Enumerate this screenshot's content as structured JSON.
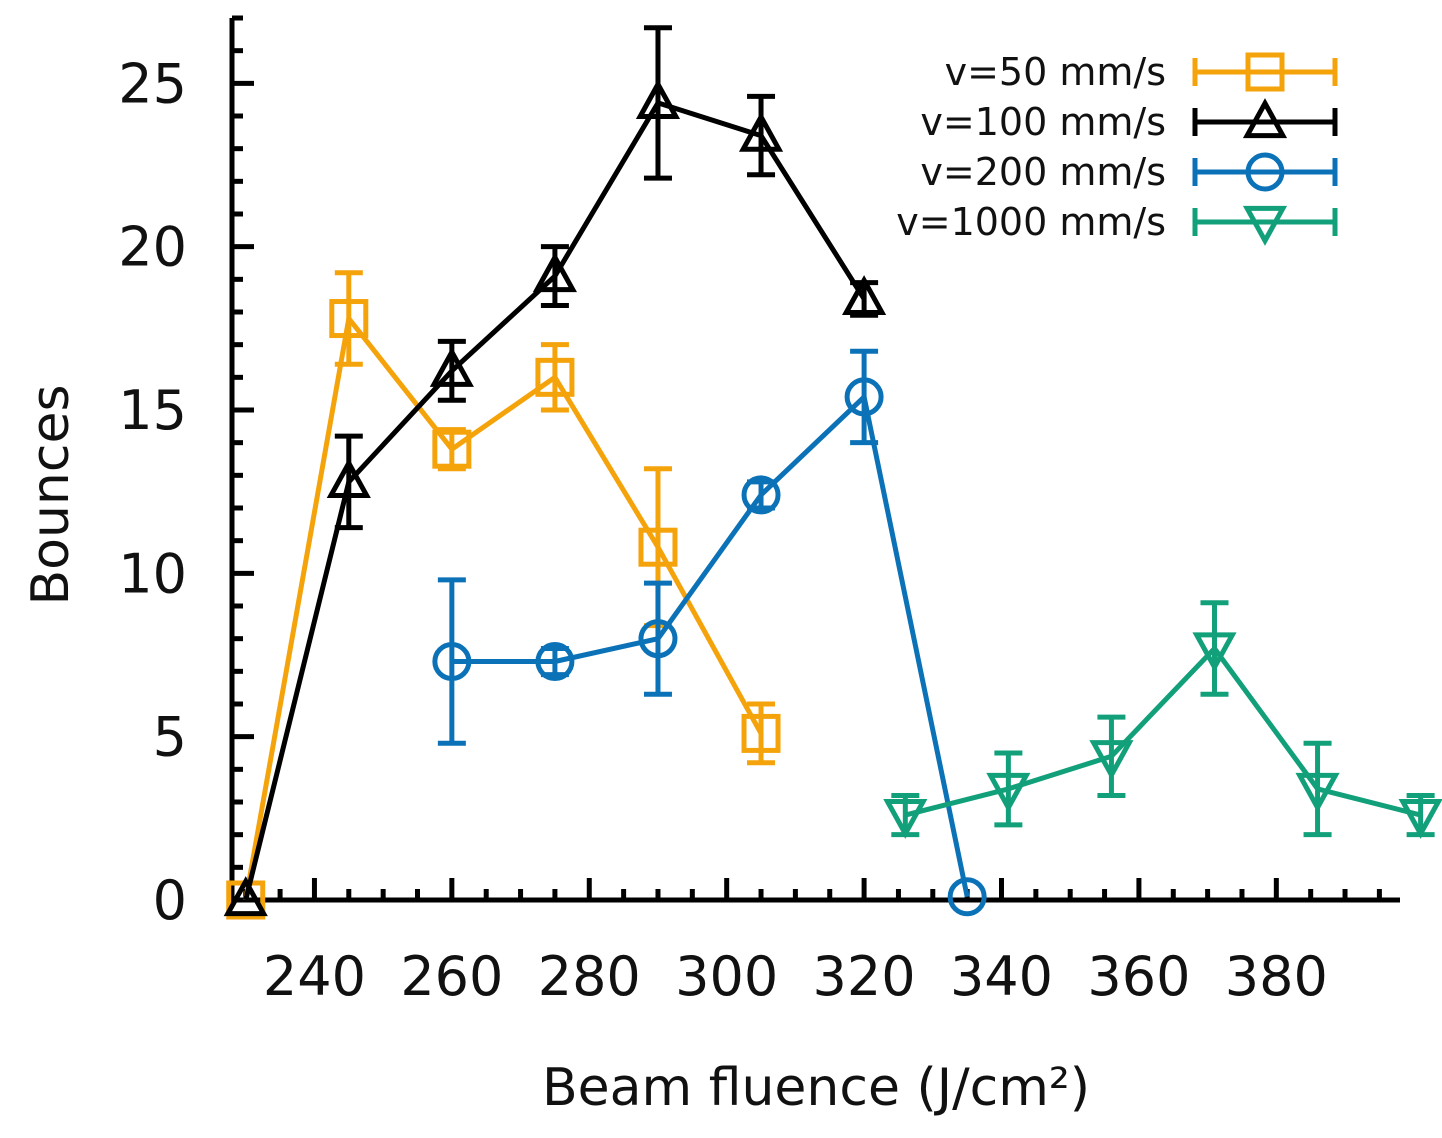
{
  "chart_data": {
    "type": "line",
    "xlabel": "Beam fluence (J/cm²)",
    "ylabel": "Bounces",
    "xlim": [
      228,
      398
    ],
    "ylim": [
      0,
      27
    ],
    "xticks": [
      240,
      260,
      280,
      300,
      320,
      340,
      360,
      380
    ],
    "yticks": [
      0,
      5,
      10,
      15,
      20,
      25
    ],
    "grid": false,
    "legend_position": "top-right",
    "series": [
      {
        "name": "v=50 mm/s",
        "color": "#f5a30a",
        "marker": "square",
        "points": [
          {
            "x": 230,
            "y": 0,
            "err": 0
          },
          {
            "x": 245,
            "y": 17.8,
            "err": 1.4
          },
          {
            "x": 260,
            "y": 13.8,
            "err": 0.6
          },
          {
            "x": 275,
            "y": 16.0,
            "err": 1.0
          },
          {
            "x": 290,
            "y": 10.8,
            "err": 2.4
          },
          {
            "x": 305,
            "y": 5.1,
            "err": 0.9
          }
        ]
      },
      {
        "name": "v=100 mm/s",
        "color": "#000000",
        "marker": "triangle-up",
        "points": [
          {
            "x": 230,
            "y": 0,
            "err": 0
          },
          {
            "x": 245,
            "y": 12.8,
            "err": 1.4
          },
          {
            "x": 260,
            "y": 16.2,
            "err": 0.9
          },
          {
            "x": 275,
            "y": 19.1,
            "err": 0.9
          },
          {
            "x": 290,
            "y": 24.4,
            "err": 2.3
          },
          {
            "x": 305,
            "y": 23.4,
            "err": 1.2
          },
          {
            "x": 320,
            "y": 18.4,
            "err": 0.5
          }
        ]
      },
      {
        "name": "v=200 mm/s",
        "color": "#0c72b7",
        "marker": "circle",
        "points": [
          {
            "x": 260,
            "y": 7.3,
            "err": 2.5
          },
          {
            "x": 275,
            "y": 7.3,
            "err": 0.4
          },
          {
            "x": 290,
            "y": 8.0,
            "err": 1.7
          },
          {
            "x": 305,
            "y": 12.4,
            "err": 0.4
          },
          {
            "x": 320,
            "y": 15.4,
            "err": 1.4
          },
          {
            "x": 335,
            "y": 0.1,
            "err": 0
          }
        ]
      },
      {
        "name": "v=1000 mm/s",
        "color": "#12a07a",
        "marker": "triangle-down",
        "points": [
          {
            "x": 326,
            "y": 2.6,
            "err": 0.6
          },
          {
            "x": 341,
            "y": 3.4,
            "err": 1.1
          },
          {
            "x": 356,
            "y": 4.4,
            "err": 1.2
          },
          {
            "x": 371,
            "y": 7.7,
            "err": 1.4
          },
          {
            "x": 386,
            "y": 3.4,
            "err": 1.4
          },
          {
            "x": 401,
            "y": 2.6,
            "err": 0.6
          }
        ]
      }
    ]
  }
}
